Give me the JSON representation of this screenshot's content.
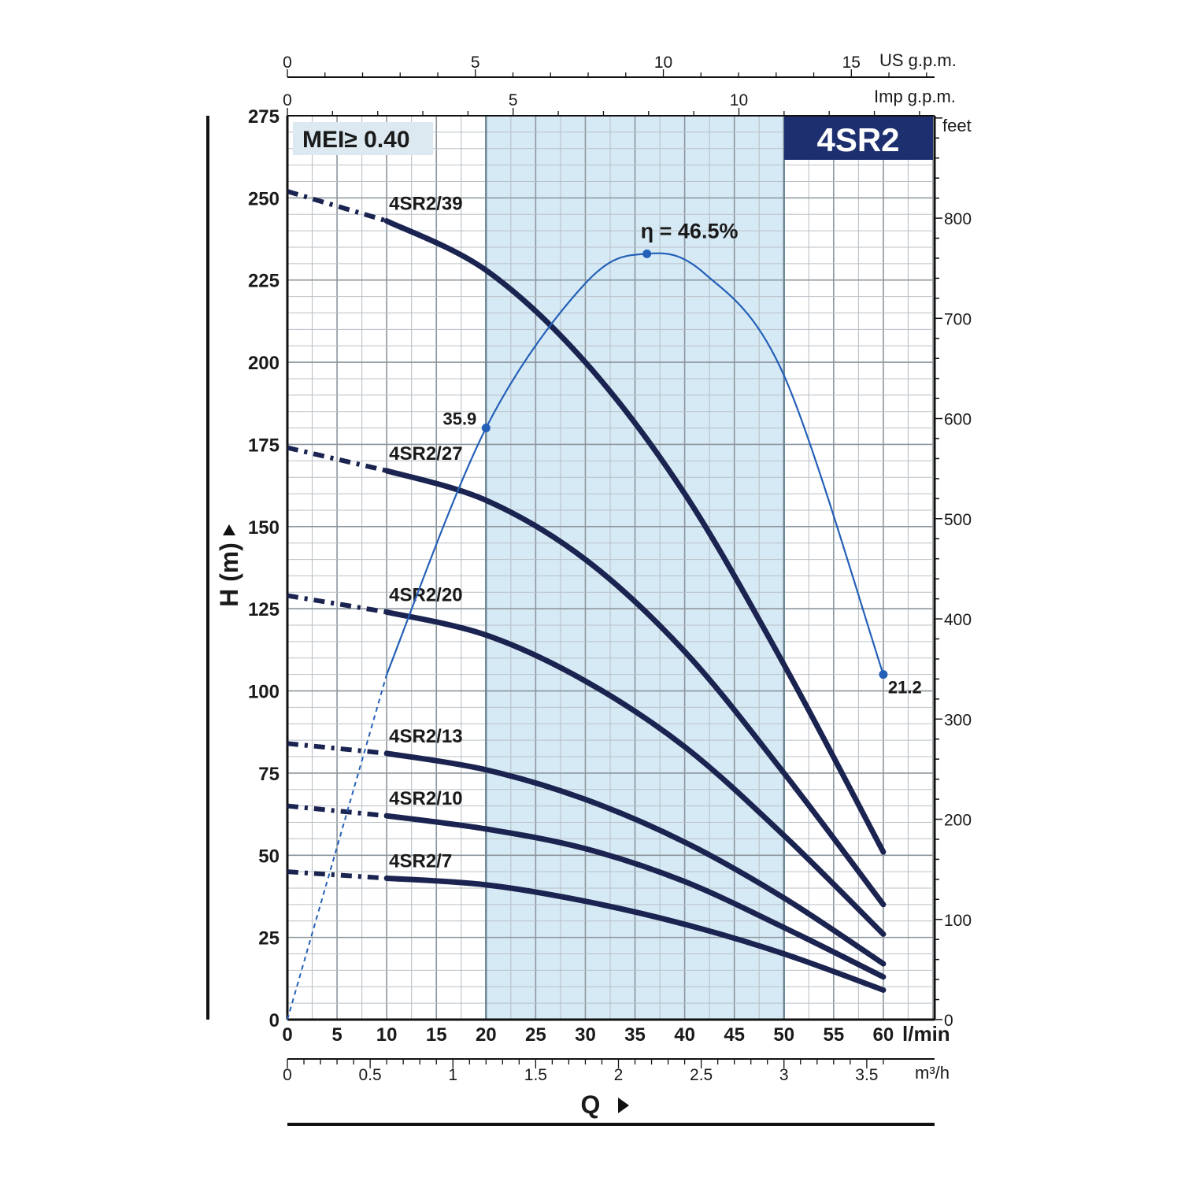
{
  "chart_data": {
    "type": "line",
    "badge": "MEI≥ 0.40",
    "model_title": "4SR2",
    "y_axis": {
      "title": "H (m)",
      "min": 0,
      "max": 275,
      "ticks": [
        0,
        25,
        50,
        75,
        100,
        125,
        150,
        175,
        200,
        225,
        250,
        275
      ]
    },
    "y_right_axis": {
      "unit": "feet",
      "ticks": [
        0,
        100,
        200,
        300,
        400,
        500,
        600,
        700,
        800
      ]
    },
    "x_axis": {
      "title": "Q",
      "unit": "l/min",
      "min": 0,
      "max": 65,
      "ticks": [
        0,
        5,
        10,
        15,
        20,
        25,
        30,
        35,
        40,
        45,
        50,
        55,
        60
      ]
    },
    "x_m3h_axis": {
      "unit": "m³/h",
      "ticks": [
        "0",
        "0.5",
        "1",
        "1.5",
        "2",
        "2.5",
        "3",
        "3.5"
      ]
    },
    "x_us_gpm_axis": {
      "unit": "US g.p.m.",
      "ticks": [
        "0",
        "5",
        "10",
        "15"
      ]
    },
    "x_imp_gpm_axis": {
      "unit": "Imp g.p.m.",
      "ticks": [
        "0",
        "5",
        "10"
      ]
    },
    "preferred_range": [
      20,
      50
    ],
    "series": [
      {
        "name": "4SR2/39",
        "x": [
          0,
          10,
          20,
          30,
          40,
          50,
          60
        ],
        "y": [
          252,
          243,
          228,
          200,
          160,
          108,
          51
        ]
      },
      {
        "name": "4SR2/27",
        "x": [
          0,
          10,
          20,
          30,
          40,
          50,
          60
        ],
        "y": [
          174,
          167,
          158,
          140,
          112,
          75,
          35
        ]
      },
      {
        "name": "4SR2/20",
        "x": [
          0,
          10,
          20,
          30,
          40,
          50,
          60
        ],
        "y": [
          129,
          124,
          117,
          103,
          83,
          56,
          26
        ]
      },
      {
        "name": "4SR2/13",
        "x": [
          0,
          10,
          20,
          30,
          40,
          50,
          60
        ],
        "y": [
          84,
          81,
          76,
          67,
          54,
          37,
          17
        ]
      },
      {
        "name": "4SR2/10",
        "x": [
          0,
          10,
          20,
          30,
          40,
          50,
          60
        ],
        "y": [
          65,
          62,
          58,
          52,
          42,
          28,
          13
        ]
      },
      {
        "name": "4SR2/7",
        "x": [
          0,
          10,
          20,
          30,
          40,
          50,
          60
        ],
        "y": [
          45,
          43,
          41,
          36,
          29,
          20,
          9
        ]
      }
    ],
    "efficiency": {
      "peak_label": "η = 46.5%",
      "points": [
        {
          "x": 20,
          "label": "35.9"
        },
        {
          "x": 36.2,
          "label": ""
        },
        {
          "x": 60,
          "label": "21.2"
        }
      ]
    }
  }
}
